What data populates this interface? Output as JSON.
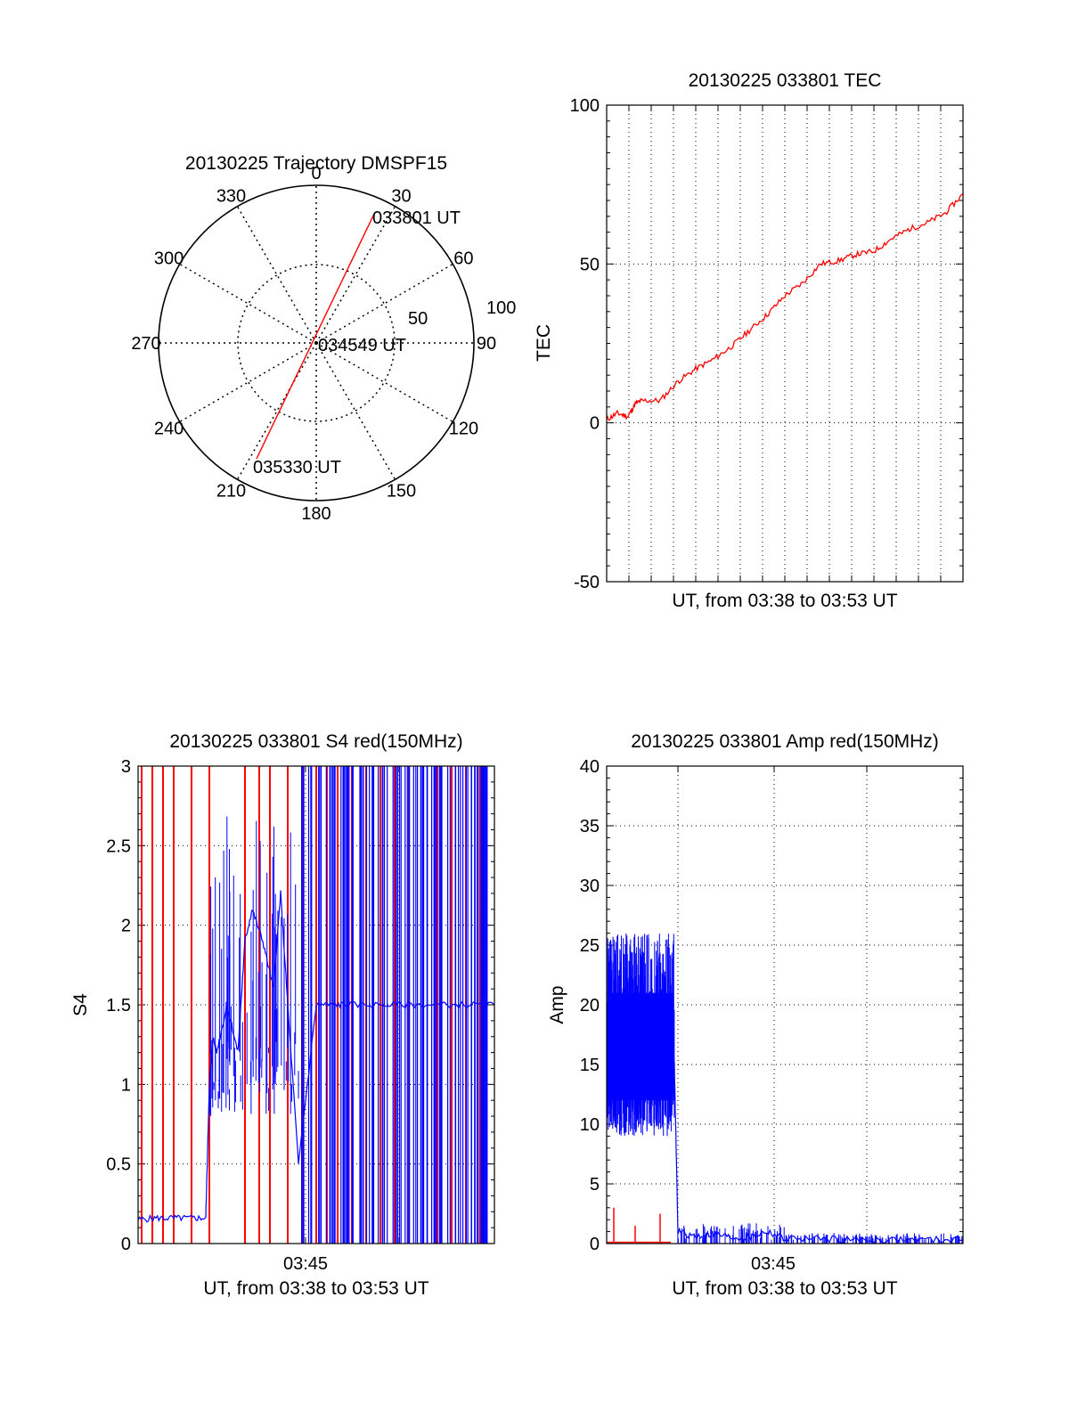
{
  "colors": {
    "red": "#ff0000",
    "blue": "#0000ff",
    "axis": "#000000",
    "grid": "#000000"
  },
  "polar": {
    "title": "20130225 Trajectory DMSPF15",
    "angle_labels": [
      "0",
      "30",
      "60",
      "90",
      "120",
      "150",
      "180",
      "210",
      "240",
      "270",
      "300",
      "330"
    ],
    "radial_labels": [
      "50",
      "100"
    ],
    "annotations": [
      "033801 UT",
      "034549 UT",
      "035330 UT"
    ]
  },
  "chart_data": [
    {
      "type": "line",
      "panel": "tec",
      "title": "20130225 033801 TEC",
      "xlabel": "UT, from 03:38 to 03:53 UT",
      "ylabel": "TEC",
      "ylim": [
        -50,
        100
      ],
      "yticks": [
        "100",
        "50",
        "0",
        "-50"
      ],
      "xticks": [],
      "grid": true,
      "series": [
        {
          "color": "red",
          "x": [
            0,
            0.03,
            0.06,
            0.08,
            0.1,
            0.15,
            0.2,
            0.25,
            0.3,
            0.35,
            0.4,
            0.45,
            0.5,
            0.55,
            0.6,
            0.65,
            0.7,
            0.75,
            0.8,
            0.85,
            0.9,
            0.95,
            1.0
          ],
          "y": [
            1,
            3,
            2,
            6,
            7,
            7,
            13,
            17,
            20,
            24,
            29,
            34,
            40,
            44,
            50,
            51,
            53,
            54,
            58,
            61,
            63,
            66,
            72
          ]
        }
      ]
    },
    {
      "type": "line",
      "panel": "s4",
      "title": "20130225 033801 S4 red(150MHz)",
      "xlabel": "UT, from 03:38 to 03:53 UT",
      "ylabel": "S4",
      "ylim": [
        0,
        3
      ],
      "yticks": [
        "3",
        "2.5",
        "2",
        "1.5",
        "1",
        "0.5",
        "0"
      ],
      "xticks": [
        "03:45"
      ],
      "grid": true,
      "series": [
        {
          "color": "blue",
          "x": [
            0,
            0.05,
            0.1,
            0.15,
            0.19,
            0.2,
            0.21,
            0.22,
            0.25,
            0.28,
            0.3,
            0.32,
            0.35,
            0.38,
            0.4,
            0.42,
            0.45,
            0.5,
            0.55,
            0.6,
            0.7,
            0.8,
            0.9,
            1.0
          ],
          "y": [
            0.15,
            0.16,
            0.16,
            0.16,
            0.16,
            1.0,
            1.3,
            1.2,
            1.5,
            1.2,
            1.9,
            2.1,
            1.9,
            1.6,
            2.2,
            1.5,
            0.5,
            1.5,
            1.5,
            1.5,
            1.5,
            1.5,
            1.5,
            1.5
          ]
        }
      ],
      "red_spikes_x": [
        0.01,
        0.04,
        0.07,
        0.1,
        0.15,
        0.2,
        0.3,
        0.34,
        0.37,
        0.42,
        0.46,
        0.5,
        0.53,
        0.56,
        0.6,
        0.64,
        0.68,
        0.72,
        0.76,
        0.8,
        0.84,
        0.88,
        0.92,
        0.96
      ]
    },
    {
      "type": "line",
      "panel": "amp",
      "title": "20130225 033801 Amp red(150MHz)",
      "xlabel": "UT, from 03:38 to 03:53 UT",
      "ylabel": "Amp",
      "ylim": [
        0,
        40
      ],
      "yticks": [
        "40",
        "35",
        "30",
        "25",
        "20",
        "15",
        "10",
        "5",
        "0"
      ],
      "xticks": [
        "03:45"
      ],
      "grid": true,
      "series": [
        {
          "color": "blue",
          "x": [
            0,
            0.02,
            0.05,
            0.08,
            0.1,
            0.12,
            0.15,
            0.18,
            0.19,
            0.2,
            0.25,
            0.3,
            0.35,
            0.4,
            0.45,
            0.5,
            0.6,
            0.7,
            0.8,
            0.9,
            1.0
          ],
          "y": [
            18,
            19,
            17,
            18,
            17,
            17,
            16,
            15,
            15,
            1.0,
            0.6,
            0.8,
            0.5,
            0.5,
            1.0,
            0.4,
            0.4,
            0.3,
            0.3,
            0.3,
            0.3
          ]
        }
      ],
      "red_spikes": [
        {
          "x": 0.02,
          "y": 3
        },
        {
          "x": 0.08,
          "y": 1.5
        },
        {
          "x": 0.15,
          "y": 2.5
        }
      ]
    }
  ]
}
